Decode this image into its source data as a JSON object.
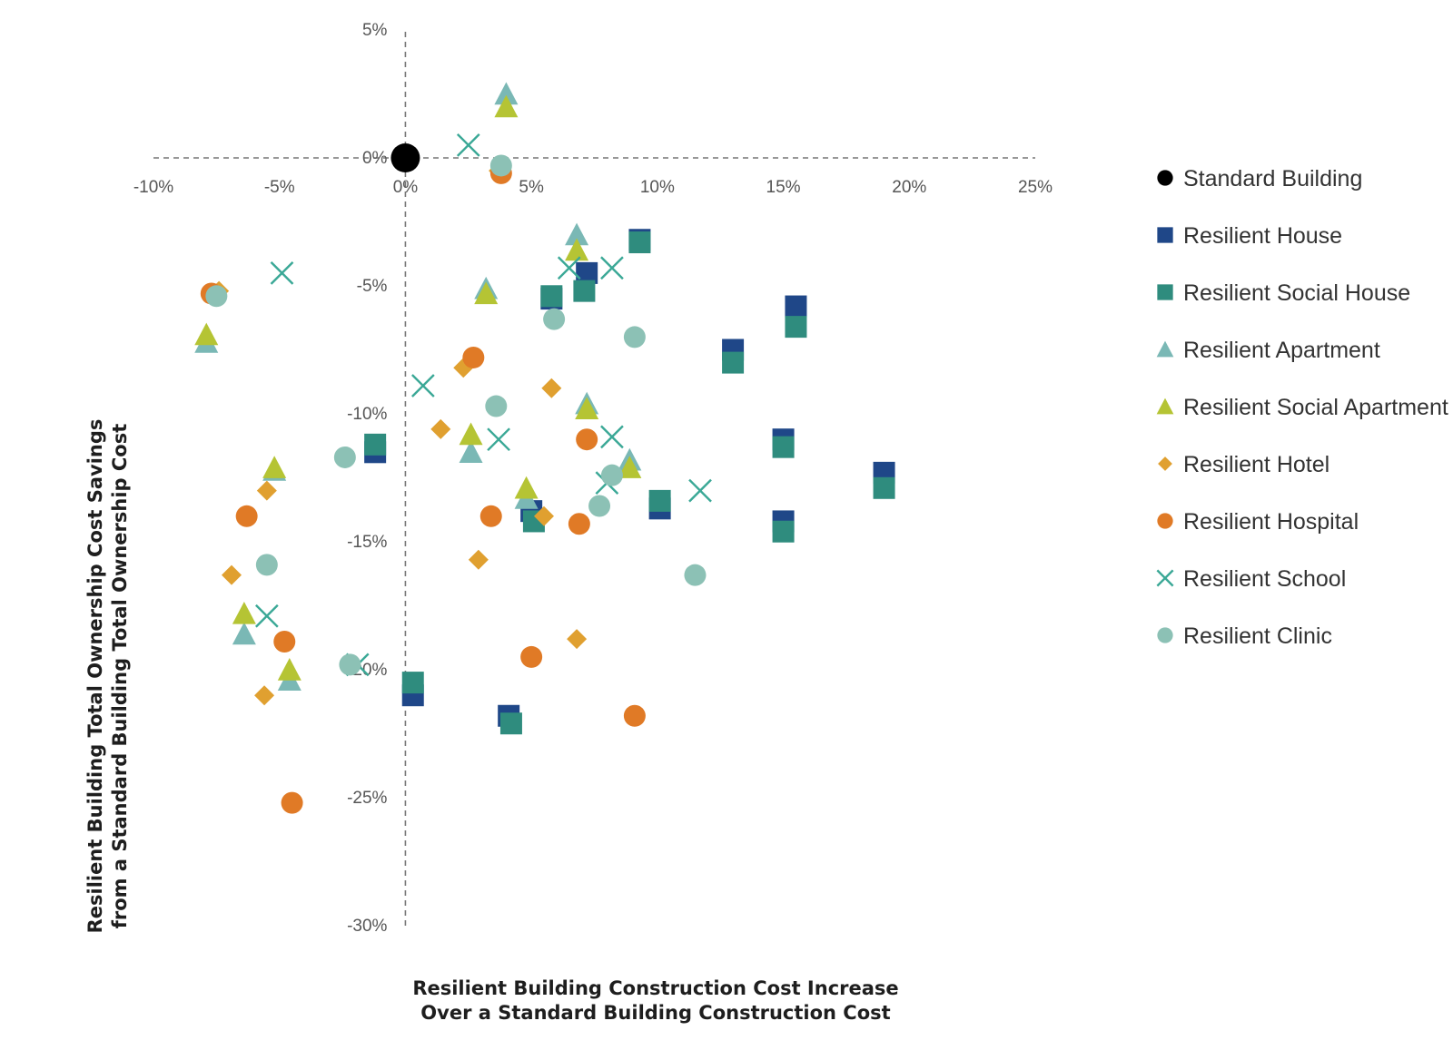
{
  "chart_data": {
    "type": "scatter",
    "title": "",
    "xlabel": [
      "Resilient Building Construction Cost Increase",
      "Over a Standard Building Construction Cost"
    ],
    "ylabel": [
      "Resilient Building Total Ownership Cost  Savings",
      "from a Standard Building Total Ownership Cost"
    ],
    "xlim": [
      -10,
      25
    ],
    "ylim": [
      -30,
      5
    ],
    "x_ticks": [
      -10,
      -5,
      0,
      5,
      10,
      15,
      20,
      25
    ],
    "x_tick_labels": [
      "-10%",
      "-5%",
      "0%",
      "5%",
      "10%",
      "15%",
      "20%",
      "25%"
    ],
    "y_ticks": [
      5,
      0,
      -5,
      -10,
      -15,
      -20,
      -25,
      -30
    ],
    "y_tick_labels": [
      "5%",
      "0%",
      "-5%",
      "-10%",
      "-15%",
      "-20%",
      "-25%",
      "-30%"
    ],
    "legend_position": "right",
    "series": [
      {
        "name": "Standard Building",
        "marker": "big-circle",
        "color": "#000000",
        "points": [
          [
            0,
            0
          ]
        ]
      },
      {
        "name": "Resilient House",
        "marker": "square",
        "color": "#1f4788",
        "points": [
          [
            -1.2,
            -11.5
          ],
          [
            0.3,
            -21.0
          ],
          [
            4.1,
            -21.8
          ],
          [
            5.0,
            -13.8
          ],
          [
            5.8,
            -5.5
          ],
          [
            7.2,
            -4.5
          ],
          [
            9.3,
            -3.2
          ],
          [
            10.1,
            -13.7
          ],
          [
            13.0,
            -7.5
          ],
          [
            15.0,
            -11.0
          ],
          [
            15.0,
            -14.2
          ],
          [
            15.5,
            -5.8
          ],
          [
            19.0,
            -12.3
          ]
        ]
      },
      {
        "name": "Resilient Social House",
        "marker": "square",
        "color": "#2f8c7e",
        "points": [
          [
            -1.2,
            -11.2
          ],
          [
            0.3,
            -20.5
          ],
          [
            4.2,
            -22.1
          ],
          [
            5.1,
            -14.2
          ],
          [
            5.8,
            -5.4
          ],
          [
            7.1,
            -5.2
          ],
          [
            9.3,
            -3.3
          ],
          [
            10.1,
            -13.4
          ],
          [
            13.0,
            -8.0
          ],
          [
            15.0,
            -11.3
          ],
          [
            15.0,
            -14.6
          ],
          [
            15.5,
            -6.6
          ],
          [
            19.0,
            -12.9
          ]
        ]
      },
      {
        "name": "Resilient Apartment",
        "marker": "triangle",
        "color": "#7ab8b5",
        "points": [
          [
            4.0,
            2.5
          ],
          [
            -7.9,
            -7.2
          ],
          [
            3.2,
            -5.1
          ],
          [
            6.8,
            -3.0
          ],
          [
            7.2,
            -9.6
          ],
          [
            2.6,
            -11.5
          ],
          [
            8.9,
            -11.8
          ],
          [
            4.8,
            -13.3
          ],
          [
            -5.2,
            -12.2
          ],
          [
            -6.4,
            -18.6
          ],
          [
            -4.6,
            -20.4
          ]
        ]
      },
      {
        "name": "Resilient Social Apartment",
        "marker": "triangle",
        "color": "#b5c434",
        "points": [
          [
            4.0,
            2.0
          ],
          [
            -7.9,
            -6.9
          ],
          [
            3.2,
            -5.3
          ],
          [
            6.8,
            -3.6
          ],
          [
            7.2,
            -9.8
          ],
          [
            2.6,
            -10.8
          ],
          [
            8.9,
            -12.1
          ],
          [
            4.8,
            -12.9
          ],
          [
            -5.2,
            -12.1
          ],
          [
            -6.4,
            -17.8
          ],
          [
            -4.6,
            -20.0
          ]
        ]
      },
      {
        "name": "Resilient Hotel",
        "marker": "diamond",
        "color": "#e0a030",
        "points": [
          [
            3.7,
            -0.5
          ],
          [
            -7.4,
            -5.2
          ],
          [
            2.3,
            -8.2
          ],
          [
            5.8,
            -9.0
          ],
          [
            1.4,
            -10.6
          ],
          [
            -5.5,
            -13.0
          ],
          [
            5.5,
            -14.0
          ],
          [
            2.9,
            -15.7
          ],
          [
            -6.9,
            -16.3
          ],
          [
            6.8,
            -18.8
          ],
          [
            -5.6,
            -21.0
          ]
        ]
      },
      {
        "name": "Resilient Hospital",
        "marker": "circle",
        "color": "#e07a26",
        "points": [
          [
            3.8,
            -0.6
          ],
          [
            -7.7,
            -5.3
          ],
          [
            2.7,
            -7.8
          ],
          [
            7.2,
            -11.0
          ],
          [
            -6.3,
            -14.0
          ],
          [
            3.4,
            -14.0
          ],
          [
            6.9,
            -14.3
          ],
          [
            -4.8,
            -18.9
          ],
          [
            5.0,
            -19.5
          ],
          [
            9.1,
            -21.8
          ],
          [
            -4.5,
            -25.2
          ]
        ]
      },
      {
        "name": "Resilient School",
        "marker": "x",
        "color": "#3aa896",
        "points": [
          [
            2.5,
            0.5
          ],
          [
            -4.9,
            -4.5
          ],
          [
            6.5,
            -4.3
          ],
          [
            8.2,
            -4.3
          ],
          [
            0.7,
            -8.9
          ],
          [
            3.7,
            -11.0
          ],
          [
            8.2,
            -10.9
          ],
          [
            8.0,
            -12.7
          ],
          [
            11.7,
            -13.0
          ],
          [
            -5.5,
            -17.9
          ],
          [
            -1.9,
            -19.8
          ]
        ]
      },
      {
        "name": "Resilient Clinic",
        "marker": "circle",
        "color": "#8cc1b5",
        "points": [
          [
            3.8,
            -0.3
          ],
          [
            -7.5,
            -5.4
          ],
          [
            5.9,
            -6.3
          ],
          [
            9.1,
            -7.0
          ],
          [
            3.6,
            -9.7
          ],
          [
            -2.4,
            -11.7
          ],
          [
            8.2,
            -12.4
          ],
          [
            7.7,
            -13.6
          ],
          [
            -5.5,
            -15.9
          ],
          [
            11.5,
            -16.3
          ],
          [
            -2.2,
            -19.8
          ]
        ]
      }
    ]
  }
}
